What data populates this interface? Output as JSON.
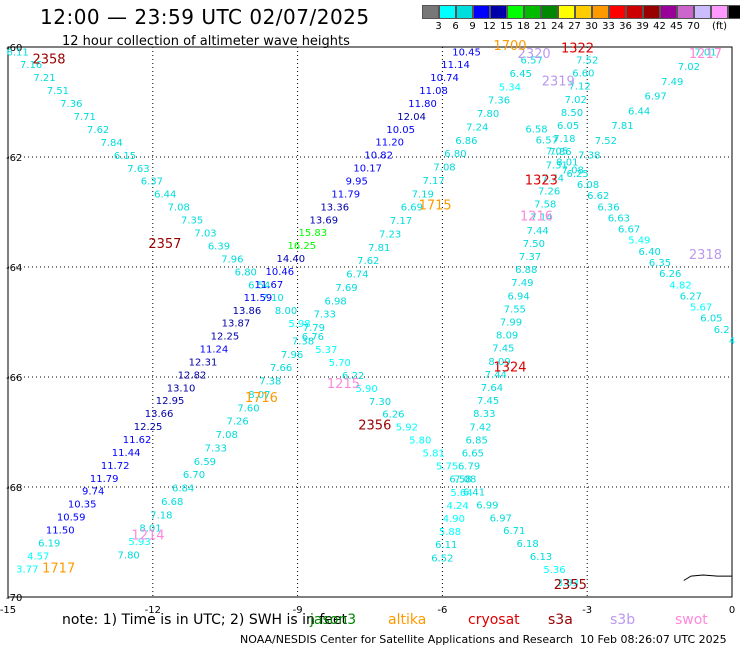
{
  "header": {
    "title": "12:00 — 23:59 UTC 02/07/2025",
    "subtitle": "12 hour collection of altimeter wave heights"
  },
  "colorbar": {
    "colors": [
      "#777777",
      "#00ffff",
      "#00dddd",
      "#0000ff",
      "#0000aa",
      "#00ff00",
      "#00bb00",
      "#008800",
      "#ffff00",
      "#ffcc00",
      "#ff9900",
      "#ff0000",
      "#cc0000",
      "#990000",
      "#990099",
      "#cc66cc",
      "#ccbbff",
      "#ff99ff",
      "#000000"
    ],
    "labels": [
      "3",
      "6",
      "9",
      "12",
      "15",
      "18",
      "21",
      "24",
      "27",
      "30",
      "33",
      "36",
      "39",
      "42",
      "45",
      "70"
    ],
    "unit": "(ft)"
  },
  "axes": {
    "x_ticks": [
      "-15",
      "-12",
      "-9",
      "-6",
      "-3",
      "0"
    ],
    "y_ticks": [
      "-60",
      "-62",
      "-64",
      "-66",
      "-68",
      "-70"
    ]
  },
  "footer": {
    "note": "note:  1) Time is in UTC; 2) SWH is in feet",
    "satellites": [
      {
        "name": "jason3",
        "color": "#008800"
      },
      {
        "name": "altika",
        "color": "#ff9900"
      },
      {
        "name": "cryosat",
        "color": "#dd0000"
      },
      {
        "name": "s3a",
        "color": "#990000"
      },
      {
        "name": "s3b",
        "color": "#bb99ee"
      },
      {
        "name": "swot",
        "color": "#ff88dd"
      }
    ],
    "credit": "NOAA/NESDIS Center for Satellite Applications and Research",
    "generated": "10 Feb 08:26:07 UTC 2025"
  },
  "map_data": {
    "time_labels": [
      {
        "text": "2358",
        "lon": -14.15,
        "lat": -60.3,
        "color": "#990000"
      },
      {
        "text": "2357",
        "lon": -11.75,
        "lat": -63.65,
        "color": "#990000"
      },
      {
        "text": "2356",
        "lon": -7.4,
        "lat": -66.95,
        "color": "#990000"
      },
      {
        "text": "2355",
        "lon": -3.35,
        "lat": -69.85,
        "color": "#990000"
      },
      {
        "text": "1717",
        "lon": -13.95,
        "lat": -69.55,
        "color": "#ff9900"
      },
      {
        "text": "1716",
        "lon": -9.75,
        "lat": -66.45,
        "color": "#ff9900"
      },
      {
        "text": "1715",
        "lon": -6.15,
        "lat": -62.95,
        "color": "#ff9900"
      },
      {
        "text": "1214",
        "lon": -12.1,
        "lat": -68.95,
        "color": "#ff88dd"
      },
      {
        "text": "1215",
        "lon": -8.05,
        "lat": -66.2,
        "color": "#ff88dd"
      },
      {
        "text": "1216",
        "lon": -4.05,
        "lat": -63.15,
        "color": "#ff88dd"
      },
      {
        "text": "1217",
        "lon": -0.55,
        "lat": -60.2,
        "color": "#ff88dd"
      },
      {
        "text": "1322",
        "lon": -3.2,
        "lat": -60.1,
        "color": "#dd0000"
      },
      {
        "text": "1323",
        "lon": -3.95,
        "lat": -62.5,
        "color": "#dd0000"
      },
      {
        "text": "1324",
        "lon": -4.6,
        "lat": -65.9,
        "color": "#dd0000"
      },
      {
        "text": "2318",
        "lon": -0.55,
        "lat": -63.85,
        "color": "#bb99ee"
      },
      {
        "text": "2319",
        "lon": -3.6,
        "lat": -60.7,
        "color": "#bb99ee"
      },
      {
        "text": "2320",
        "lon": -4.1,
        "lat": -60.2,
        "color": "#bb99ee"
      },
      {
        "text": "1700",
        "lon": -4.6,
        "lat": -60.05,
        "color": "#ff9900"
      }
    ],
    "tracks": [
      {
        "from": [
          -14.8,
          -60.15
        ],
        "to": [
          -3.4,
          -69.8
        ],
        "values": [
          "6.11",
          "7.16",
          "7.21",
          "7.51",
          "7.36",
          "7.71",
          "7.62",
          "7.84",
          "6.15",
          "7.63",
          "6.37",
          "6.44",
          "7.08",
          "7.35",
          "7.03",
          "6.39",
          "7.96",
          "6.80",
          "6.54",
          "7.10",
          "8.00",
          "5.98",
          "6.76",
          "5.37",
          "5.70",
          "6.22",
          "5.90",
          "7.30",
          "6.26",
          "5.92",
          "5.80",
          "5.81",
          "5.75",
          "6.58",
          "6.41",
          "6.99",
          "6.97",
          "6.71",
          "6.18",
          "6.13",
          "5.36",
          "3.93"
        ]
      },
      {
        "from": [
          -14.6,
          -69.55
        ],
        "to": [
          -5.5,
          -60.15
        ],
        "values": [
          "3.77",
          "4.57",
          "6.19",
          "11.50",
          "10.59",
          "10.35",
          "9.74",
          "11.79",
          "11.72",
          "11.44",
          "11.62",
          "12.25",
          "13.66",
          "12.95",
          "13.10",
          "12.82",
          "12.31",
          "11.24",
          "12.25",
          "13.87",
          "13.86",
          "11.59",
          "11.67",
          "10.46",
          "14.40",
          "16.25",
          "15.83",
          "13.69",
          "13.36",
          "11.79",
          "9.95",
          "10.17",
          "10.82",
          "11.20",
          "10.05",
          "12.04",
          "11.80",
          "11.08",
          "10.74",
          "11.14",
          "10.45"
        ]
      },
      {
        "from": [
          -12.5,
          -69.3
        ],
        "to": [
          -4.15,
          -60.3
        ],
        "values": [
          "7.80",
          "5.93",
          "8.01",
          "7.18",
          "6.68",
          "6.84",
          "6.70",
          "6.59",
          "7.33",
          "7.08",
          "7.26",
          "7.60",
          "8.07",
          "7.38",
          "7.66",
          "7.96",
          "7.38",
          "7.79",
          "7.33",
          "6.98",
          "7.69",
          "6.74",
          "7.62",
          "7.81",
          "7.23",
          "7.17",
          "6.69",
          "7.19",
          "7.17",
          "7.08",
          "6.80",
          "6.86",
          "7.24",
          "7.80",
          "7.36",
          "5.34",
          "6.45",
          "6.57"
        ]
      },
      {
        "from": [
          -6.0,
          -69.35
        ],
        "to": [
          -3.0,
          -60.3
        ],
        "values": [
          "6.52",
          "6.11",
          "5.88",
          "4.90",
          "4.24",
          "5.64",
          "7.08",
          "6.79",
          "6.65",
          "6.85",
          "7.42",
          "8.33",
          "7.45",
          "7.64",
          "7.44",
          "8.09",
          "7.45",
          "8.09",
          "7.99",
          "7.55",
          "6.94",
          "7.49",
          "6.88",
          "7.37",
          "7.50",
          "7.44",
          "7.14",
          "7.58",
          "7.26",
          "7.74",
          "7.31",
          "7.86",
          "7.18",
          "6.05",
          "8.50",
          "7.02",
          "7.12",
          "6.60",
          "7.52"
        ]
      },
      {
        "from": [
          -4.05,
          -61.55
        ],
        "to": [
          0.0,
          -65.4
        ],
        "values": [
          "6.58",
          "6.57",
          "7.05",
          "8.01",
          "6.25",
          "6.08",
          "6.62",
          "6.36",
          "6.63",
          "6.67",
          "5.49",
          "6.40",
          "6.35",
          "6.26",
          "4.82",
          "6.27",
          "5.67",
          "6.05",
          "6.2",
          "4"
        ]
      },
      {
        "from": [
          -3.3,
          -62.3
        ],
        "to": [
          -0.55,
          -60.15
        ],
        "values": [
          "7.08",
          "7.38",
          "7.52",
          "7.81",
          "6.44",
          "6.97",
          "7.49",
          "7.02",
          "7.01"
        ]
      }
    ],
    "coast": [
      [
        -1.0,
        -69.7
      ],
      [
        -0.85,
        -69.62
      ],
      [
        -0.6,
        -69.6
      ],
      [
        -0.3,
        -69.62
      ],
      [
        0.0,
        -69.62
      ]
    ]
  }
}
